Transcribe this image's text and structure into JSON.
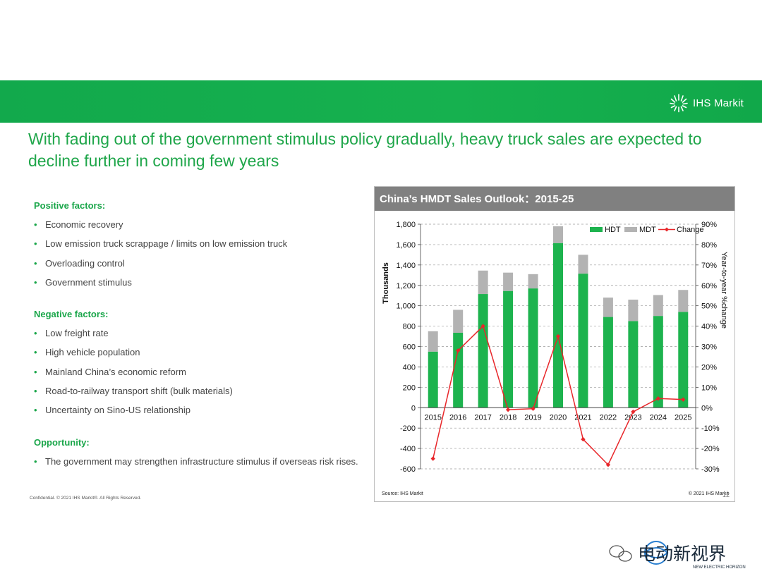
{
  "logo": {
    "text": "IHS Markit",
    "brand_color": "#16b14f"
  },
  "headline": "With fading out of the government stimulus policy gradually, heavy truck sales are expected to decline further in coming few years",
  "sections": {
    "positive": {
      "heading": "Positive factors:",
      "items": [
        "Economic recovery",
        "Low emission truck scrappage / limits on low emission truck",
        "Overloading control",
        "Government stimulus"
      ]
    },
    "negative": {
      "heading": "Negative factors:",
      "items": [
        "Low freight rate",
        "High vehicle population",
        "Mainland China’s economic reform",
        "Road-to-railway transport shift (bulk materials)",
        "Uncertainty on Sino-US relationship"
      ]
    },
    "opportunity": {
      "heading": "Opportunity:",
      "items": [
        "The government may strengthen infrastructure stimulus if overseas risk rises."
      ]
    }
  },
  "footer": {
    "confidential": "Confidential. © 2021 IHS Markit®. All Rights Reserved.",
    "page_number": "12"
  },
  "chart_data": {
    "type": "bar",
    "title": "China’s HMDT Sales Outlook：2015-25",
    "categories": [
      "2015",
      "2016",
      "2017",
      "2018",
      "2019",
      "2020",
      "2021",
      "2022",
      "2023",
      "2024",
      "2025"
    ],
    "stacked": true,
    "series": [
      {
        "name": "HDT",
        "type": "bar",
        "axis": "left",
        "color": "#1db34e",
        "values": [
          550,
          735,
          1115,
          1145,
          1170,
          1615,
          1315,
          890,
          850,
          900,
          940
        ]
      },
      {
        "name": "MDT",
        "type": "bar",
        "axis": "left",
        "color": "#b3b3b3",
        "values": [
          200,
          225,
          230,
          180,
          140,
          165,
          185,
          190,
          210,
          205,
          215
        ]
      },
      {
        "name": "Change",
        "type": "line",
        "axis": "right",
        "color": "#e8262a",
        "values": [
          -25,
          28,
          40,
          -1,
          -0.5,
          35,
          -15.5,
          -28,
          -2,
          4.5,
          4
        ]
      }
    ],
    "ylabel": "Thousands",
    "y2label": "Year-to-year %change",
    "ylim": [
      -600,
      1800
    ],
    "yticks": [
      -600,
      -400,
      -200,
      0,
      200,
      400,
      600,
      800,
      1000,
      1200,
      1400,
      1600,
      1800
    ],
    "ytick_labels": [
      "-600",
      "-400",
      "-200",
      "0",
      "200",
      "400",
      "600",
      "800",
      "1,000",
      "1,200",
      "1,400",
      "1,600",
      "1,800"
    ],
    "y2lim": [
      -30,
      90
    ],
    "y2ticks": [
      -30,
      -20,
      -10,
      0,
      10,
      20,
      30,
      40,
      50,
      60,
      70,
      80,
      90
    ],
    "y2tick_labels": [
      "-30%",
      "-20%",
      "-10%",
      "0%",
      "10%",
      "20%",
      "30%",
      "40%",
      "50%",
      "60%",
      "70%",
      "80%",
      "90%"
    ],
    "grid": true,
    "legend": "top-right",
    "source": "Source: IHS Markit",
    "copyright": "© 2021 IHS Markit"
  },
  "watermark": {
    "text": "电动新视界",
    "subtext": "NEW ELECTRIC HORIZON"
  }
}
